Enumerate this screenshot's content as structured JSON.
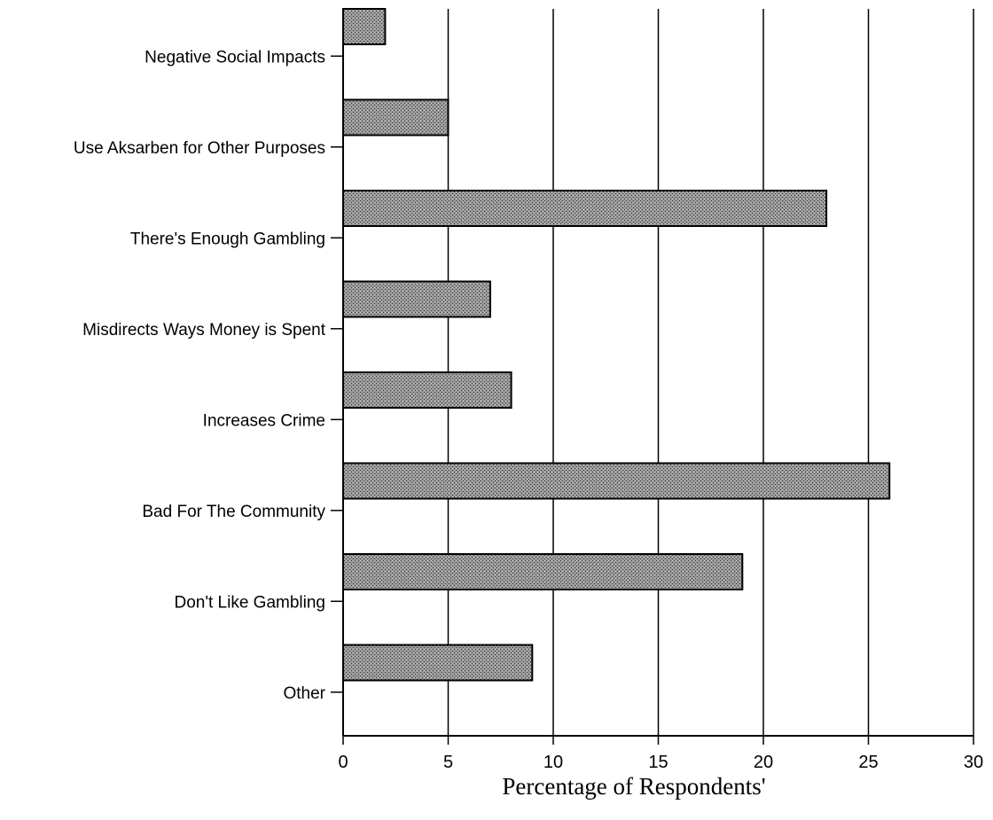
{
  "chart_data": {
    "type": "bar",
    "orientation": "horizontal",
    "categories": [
      "Negative Social Impacts",
      "Use Aksarben for Other Purposes",
      "There's Enough Gambling",
      "Misdirects Ways Money is Spent",
      "Increases Crime",
      "Bad For The Community",
      "Don't Like Gambling",
      "Other"
    ],
    "values": [
      2,
      5,
      23,
      7,
      8,
      26,
      19,
      9
    ],
    "xlabel": "Percentage of Respondents'",
    "ylabel": "",
    "xlim": [
      0,
      30
    ],
    "xticks": [
      0,
      5,
      10,
      15,
      20,
      25,
      30
    ],
    "grid": "vertical",
    "bar_color": "#7a7a7a",
    "legend": "none"
  }
}
